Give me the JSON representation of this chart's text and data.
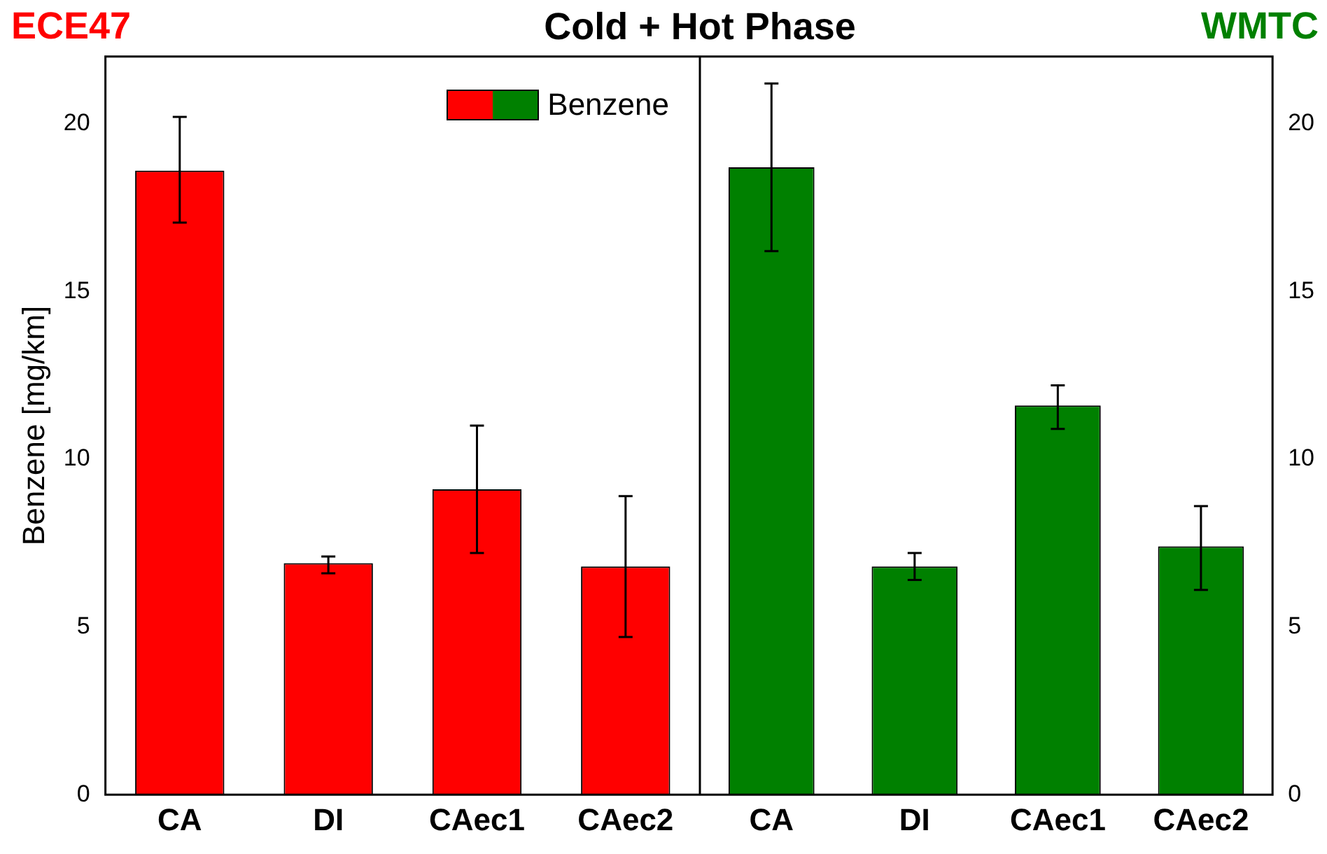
{
  "chart_data": [
    {
      "type": "bar",
      "title": "ECE47",
      "ylabel": "Benzene [mg/km]",
      "annotations": [
        "Cold + Hot Phase"
      ],
      "categories": [
        "CA",
        "DI",
        "CAec1",
        "CAec2"
      ],
      "series": [
        {
          "name": "Benzene",
          "color": "#ff0000",
          "values": [
            18.6,
            6.9,
            9.1,
            6.8
          ],
          "errors": [
            [
              17.05,
              20.2
            ],
            [
              6.6,
              7.1
            ],
            [
              7.2,
              11.0
            ],
            [
              4.7,
              8.9
            ]
          ]
        }
      ],
      "ylim": [
        0,
        22
      ],
      "yticks": [
        0,
        5,
        10,
        15,
        20
      ],
      "grid": false,
      "legend": "top right"
    },
    {
      "type": "bar",
      "title": "WMTC",
      "categories": [
        "CA",
        "DI",
        "CAec1",
        "CAec2"
      ],
      "series": [
        {
          "color": "#008000",
          "values": [
            18.7,
            6.8,
            11.6,
            7.4
          ],
          "errors": [
            [
              16.2,
              21.2
            ],
            [
              6.4,
              7.2
            ],
            [
              10.9,
              12.2
            ],
            [
              6.1,
              8.6
            ]
          ]
        }
      ],
      "ylim": [
        0,
        22
      ],
      "yticks": [
        0,
        5,
        10,
        15,
        20
      ],
      "grid": false,
      "legend": false
    }
  ]
}
